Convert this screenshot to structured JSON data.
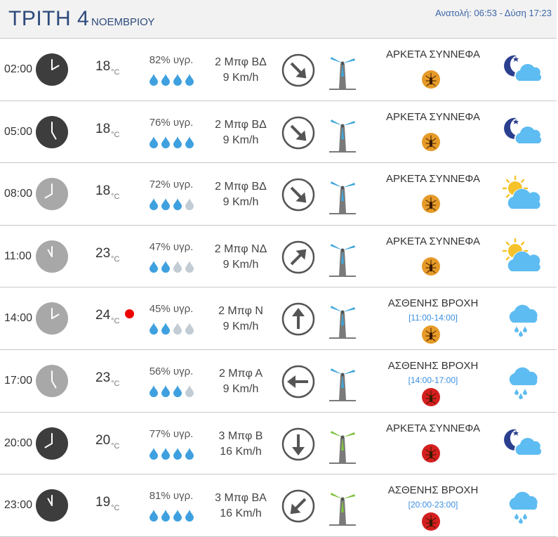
{
  "header": {
    "day": "ΤΡΙΤΗ 4",
    "month": "ΝΟΕΜΒΡΙΟΥ",
    "sun": "Ανατολή: 06:53  - Δύση 17:23"
  },
  "temp_unit": "°C",
  "rows": [
    {
      "time": "02:00",
      "temp": "18",
      "humidity": "82% υγρ.",
      "wind_bf": "2 Μπφ ΒΔ",
      "wind_kmh": "9 Km/h",
      "condition": "ΑΡΚΕΤΑ ΣΥΝΝΕΦΑ",
      "period": ""
    },
    {
      "time": "05:00",
      "temp": "18",
      "humidity": "76% υγρ.",
      "wind_bf": "2 Μπφ ΒΔ",
      "wind_kmh": "9 Km/h",
      "condition": "ΑΡΚΕΤΑ ΣΥΝΝΕΦΑ",
      "period": ""
    },
    {
      "time": "08:00",
      "temp": "18",
      "humidity": "72% υγρ.",
      "wind_bf": "2 Μπφ ΒΔ",
      "wind_kmh": "9 Km/h",
      "condition": "ΑΡΚΕΤΑ ΣΥΝΝΕΦΑ",
      "period": ""
    },
    {
      "time": "11:00",
      "temp": "23",
      "humidity": "47% υγρ.",
      "wind_bf": "2 Μπφ ΝΔ",
      "wind_kmh": "9 Km/h",
      "condition": "ΑΡΚΕΤΑ ΣΥΝΝΕΦΑ",
      "period": ""
    },
    {
      "time": "14:00",
      "temp": "24",
      "humidity": "45% υγρ.",
      "wind_bf": "2 Μπφ Ν",
      "wind_kmh": "9 Km/h",
      "condition": "ΑΣΘΕΝΗΣ ΒΡΟΧΗ",
      "period": "[11:00-14:00]"
    },
    {
      "time": "17:00",
      "temp": "23",
      "humidity": "56% υγρ.",
      "wind_bf": "2 Μπφ Α",
      "wind_kmh": "9 Km/h",
      "condition": "ΑΣΘΕΝΗΣ ΒΡΟΧΗ",
      "period": "[14:00-17:00]"
    },
    {
      "time": "20:00",
      "temp": "20",
      "humidity": "77% υγρ.",
      "wind_bf": "3 Μπφ Β",
      "wind_kmh": "16 Km/h",
      "condition": "ΑΡΚΕΤΑ ΣΥΝΝΕΦΑ",
      "period": ""
    },
    {
      "time": "23:00",
      "temp": "19",
      "humidity": "81% υγρ.",
      "wind_bf": "3 Μπφ ΒΑ",
      "wind_kmh": "16 Km/h",
      "condition": "ΑΣΘΕΝΗΣ ΒΡΟΧΗ",
      "period": "[20:00-23:00]"
    }
  ],
  "visuals": [
    {
      "clock": "dark",
      "hour": 2,
      "drops": 4,
      "arrow_deg": 135,
      "mill": "blue",
      "mosquito": "orange",
      "icon": "night-cloud",
      "rain_marker": false
    },
    {
      "clock": "dark",
      "hour": 5,
      "drops": 4,
      "arrow_deg": 135,
      "mill": "blue",
      "mosquito": "orange",
      "icon": "night-cloud",
      "rain_marker": false
    },
    {
      "clock": "light",
      "hour": 8,
      "drops": 3,
      "arrow_deg": 135,
      "mill": "blue",
      "mosquito": "orange",
      "icon": "sun-cloud",
      "rain_marker": false
    },
    {
      "clock": "light",
      "hour": 11,
      "drops": 2,
      "arrow_deg": 45,
      "mill": "blue",
      "mosquito": "orange",
      "icon": "sun-cloud",
      "rain_marker": false
    },
    {
      "clock": "light",
      "hour": 14,
      "drops": 2,
      "arrow_deg": 0,
      "mill": "blue",
      "mosquito": "orange",
      "icon": "rain-cloud",
      "rain_marker": true
    },
    {
      "clock": "light",
      "hour": 17,
      "drops": 3,
      "arrow_deg": 270,
      "mill": "blue",
      "mosquito": "red",
      "icon": "rain-cloud",
      "rain_marker": false
    },
    {
      "clock": "dark",
      "hour": 20,
      "drops": 4,
      "arrow_deg": 180,
      "mill": "green",
      "mosquito": "red",
      "icon": "night-cloud",
      "rain_marker": false
    },
    {
      "clock": "dark",
      "hour": 23,
      "drops": 4,
      "arrow_deg": 225,
      "mill": "green",
      "mosquito": "red",
      "icon": "rain-cloud",
      "rain_marker": false
    }
  ],
  "colors": {
    "clock_dark": "#3d3d3d",
    "clock_light": "#a8a8a8",
    "drop_filled": "#3fa0df",
    "drop_empty": "#c2ccd4",
    "mill_blue": "#3fa6d9",
    "mill_green": "#7fc241",
    "mosquito_orange": "#e69a28",
    "mosquito_red": "#d41f1f",
    "cloud": "#5dbcf1",
    "sun": "#f6c22c",
    "moon": "#2b3f8f",
    "title": "#2d4a7c"
  }
}
